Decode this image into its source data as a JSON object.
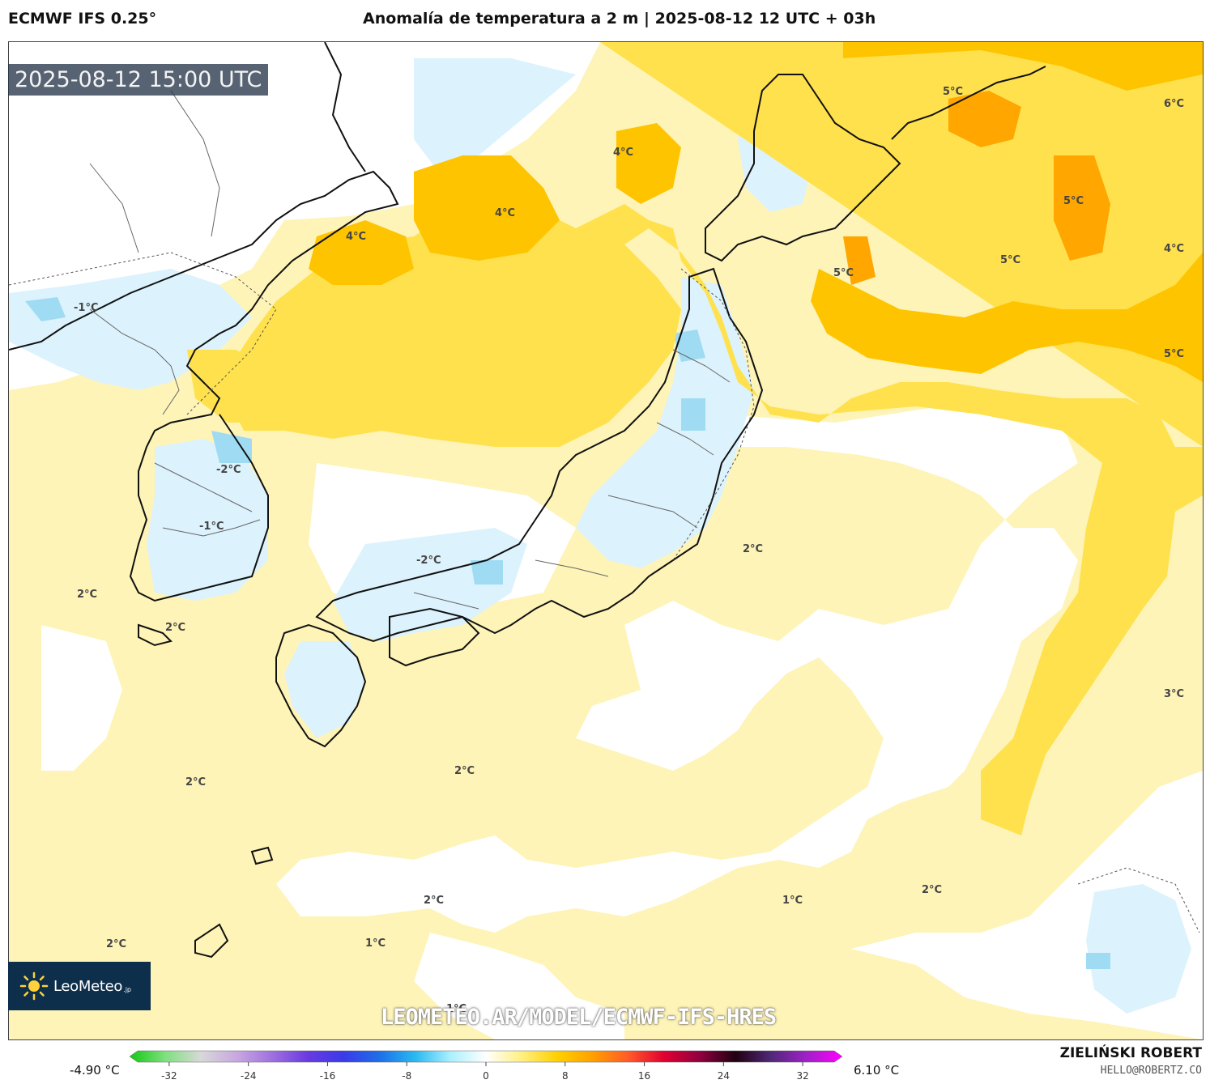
{
  "header": {
    "model": "ECMWF IFS 0.25°",
    "title": "Anomalía de temperatura a 2 m | 2025-08-12 12 UTC + 03h"
  },
  "timestamp": "2025-08-12 15:00 UTC",
  "logo": {
    "name": "LeoMeteo",
    "suffix": ".jp"
  },
  "watermark": "LEOMETEO.AR/MODEL/ECMWF-IFS-HRES",
  "colorbar": {
    "min_label": "-4.90 °C",
    "max_label": "6.10 °C",
    "ticks": [
      "-32",
      "-24",
      "-16",
      "-8",
      "0",
      "8",
      "16",
      "24",
      "32"
    ],
    "tick_values": [
      -32,
      -24,
      -16,
      -8,
      0,
      8,
      16,
      24,
      32
    ],
    "range": [
      -36,
      36
    ],
    "stops": [
      "#14c814",
      "#7ee07e",
      "#d8d8d8",
      "#c8a8e0",
      "#a070e0",
      "#6a3ae0",
      "#3a3ae8",
      "#1e6ee8",
      "#28b8f0",
      "#aaf0ff",
      "#ffffff",
      "#fff080",
      "#ffd000",
      "#ffa000",
      "#ff5a28",
      "#e00030",
      "#900040",
      "#200010",
      "#502878",
      "#a020c8",
      "#ff00ff"
    ]
  },
  "contour_labels": [
    "4°C",
    "4°C",
    "4°C",
    "5°C",
    "5°C",
    "5°C",
    "5°C",
    "6°C",
    "4°C",
    "5°C",
    "-1°C",
    "-2°C",
    "-1°C",
    "-2°C",
    "2°C",
    "2°C",
    "2°C",
    "3°C",
    "2°C",
    "2°C",
    "2°C",
    "2°C",
    "1°C",
    "2°C",
    "1°C",
    "2°C",
    "1°C"
  ],
  "author": {
    "name": "ZIELIŃSKI ROBERT",
    "email": "HELLO@ROBERTZ.CO"
  }
}
